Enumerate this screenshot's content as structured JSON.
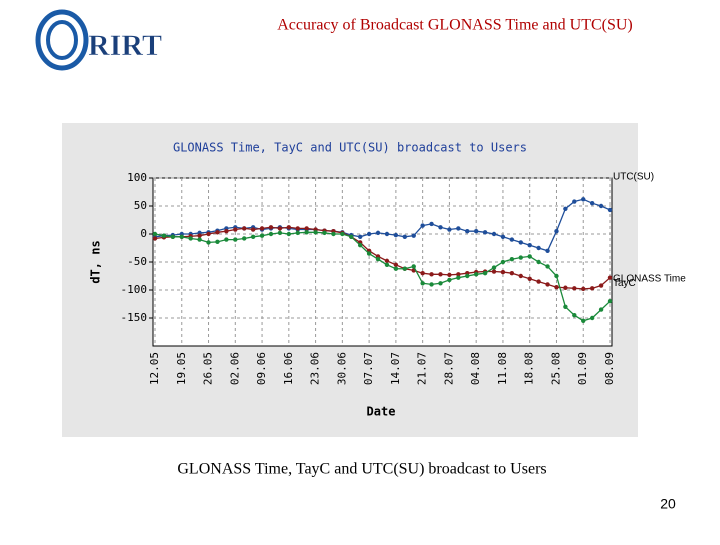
{
  "slide": {
    "title": "Accuracy of Broadcast GLONASS Time and UTC(SU)",
    "logo": "RIRT",
    "caption": "GLONASS Time, TayC and UTC(SU) broadcast to Users",
    "page_number": "20"
  },
  "chart_data": {
    "type": "line",
    "title": "GLONASS Time, TayC and UTC(SU) broadcast to Users",
    "x_label": "Date",
    "y_label": "dT, ns",
    "categories": [
      "12.05",
      null,
      null,
      "19.05",
      null,
      null,
      "26.05",
      null,
      null,
      "02.06",
      null,
      null,
      "09.06",
      null,
      null,
      "16.06",
      null,
      null,
      "23.06",
      null,
      null,
      "30.06",
      null,
      null,
      "07.07",
      null,
      null,
      "14.07",
      null,
      null,
      "21.07",
      null,
      null,
      "28.07",
      null,
      null,
      "04.08",
      null,
      null,
      "11.08",
      null,
      null,
      "18.08",
      null,
      null,
      "25.08",
      null,
      null,
      "01.09",
      null,
      null,
      "08.09"
    ],
    "series": [
      {
        "name": "UTC(SU)",
        "color": "#1f4e9a",
        "values": [
          -5,
          -3,
          -2,
          0,
          0,
          2,
          3,
          6,
          10,
          12,
          10,
          12,
          8,
          10,
          12,
          10,
          8,
          8,
          8,
          6,
          5,
          3,
          -2,
          -5,
          0,
          2,
          0,
          -2,
          -5,
          -3,
          15,
          18,
          12,
          8,
          10,
          5,
          5,
          3,
          0,
          -5,
          -10,
          -15,
          -20,
          -25,
          -30,
          5,
          45,
          58,
          62,
          55,
          50,
          43
        ]
      },
      {
        "name": "GLONASS Time",
        "color": "#8b1a1a",
        "values": [
          -8,
          -6,
          -5,
          -5,
          -4,
          -3,
          0,
          3,
          5,
          8,
          10,
          8,
          10,
          12,
          10,
          12,
          10,
          10,
          8,
          6,
          5,
          2,
          -5,
          -15,
          -30,
          -40,
          -48,
          -55,
          -62,
          -65,
          -70,
          -72,
          -72,
          -73,
          -72,
          -70,
          -68,
          -67,
          -67,
          -68,
          -70,
          -75,
          -80,
          -85,
          -90,
          -95,
          -96,
          -97,
          -98,
          -97,
          -92,
          -78
        ]
      },
      {
        "name": "TayC",
        "color": "#1a8a3a",
        "values": [
          0,
          -3,
          -5,
          -5,
          -8,
          -10,
          -15,
          -14,
          -10,
          -10,
          -8,
          -5,
          -3,
          0,
          2,
          0,
          2,
          3,
          3,
          2,
          0,
          0,
          -5,
          -20,
          -35,
          -45,
          -55,
          -62,
          -62,
          -58,
          -88,
          -90,
          -88,
          -82,
          -78,
          -75,
          -72,
          -70,
          -60,
          -50,
          -45,
          -42,
          -40,
          -50,
          -58,
          -75,
          -130,
          -145,
          -155,
          -150,
          -135,
          -120
        ]
      }
    ],
    "ylim": [
      -200,
      100
    ],
    "yticks": [
      -150,
      -100,
      -50,
      0,
      50,
      100
    ],
    "grid": true
  }
}
